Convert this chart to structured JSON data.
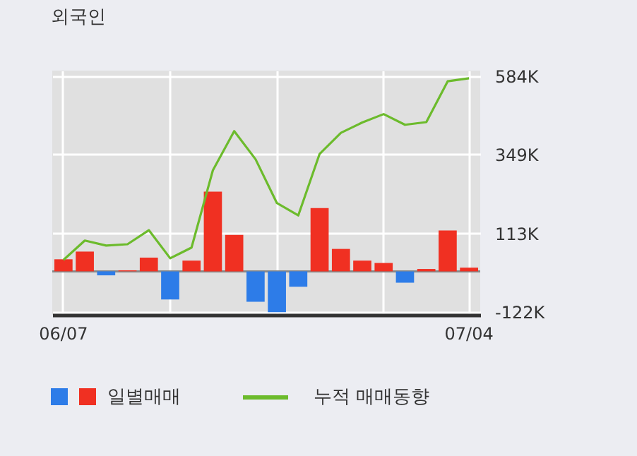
{
  "chart_data": {
    "type": "bar",
    "title": "외국인",
    "categories": [
      "06/07",
      null,
      null,
      null,
      null,
      null,
      null,
      null,
      null,
      null,
      null,
      null,
      null,
      null,
      null,
      null,
      null,
      null,
      null,
      "07/04"
    ],
    "series": [
      {
        "name": "일별매매",
        "colors": [
          "#f03022",
          "#f03022",
          "#2d7ce8",
          "#f03022",
          "#f03022",
          "#2d7ce8",
          "#f03022",
          "#f03022",
          "#f03022",
          "#2d7ce8",
          "#2d7ce8",
          "#2d7ce8",
          "#f03022",
          "#f03022",
          "#f03022",
          "#f03022",
          "#2d7ce8",
          "#f03022",
          "#f03022",
          "#f03022"
        ],
        "values": [
          36000,
          59000,
          -12000,
          3000,
          41000,
          -84000,
          32000,
          238000,
          109000,
          -91000,
          -122000,
          -46000,
          189000,
          67000,
          32000,
          25000,
          -34000,
          7000,
          122000,
          11000
        ]
      },
      {
        "name": "누적 매매동향",
        "type": "line",
        "color": "#6cbb2c",
        "values": [
          34000,
          92000,
          77000,
          81000,
          123000,
          39000,
          71000,
          302000,
          419000,
          335000,
          204000,
          167000,
          351000,
          414000,
          445000,
          470000,
          438000,
          446000,
          568000,
          577000
        ]
      }
    ],
    "ylim": [
      -130000,
      600000
    ],
    "yticks": [
      {
        "value": -122000,
        "label": "-122K"
      },
      {
        "value": 113000,
        "label": "113K"
      },
      {
        "value": 349000,
        "label": "349K"
      },
      {
        "value": 584000,
        "label": "584K"
      }
    ],
    "ref_lines": [
      {
        "axis": "y",
        "value": 0,
        "color": "#888888"
      }
    ],
    "grid": true,
    "legend": "bottom"
  }
}
